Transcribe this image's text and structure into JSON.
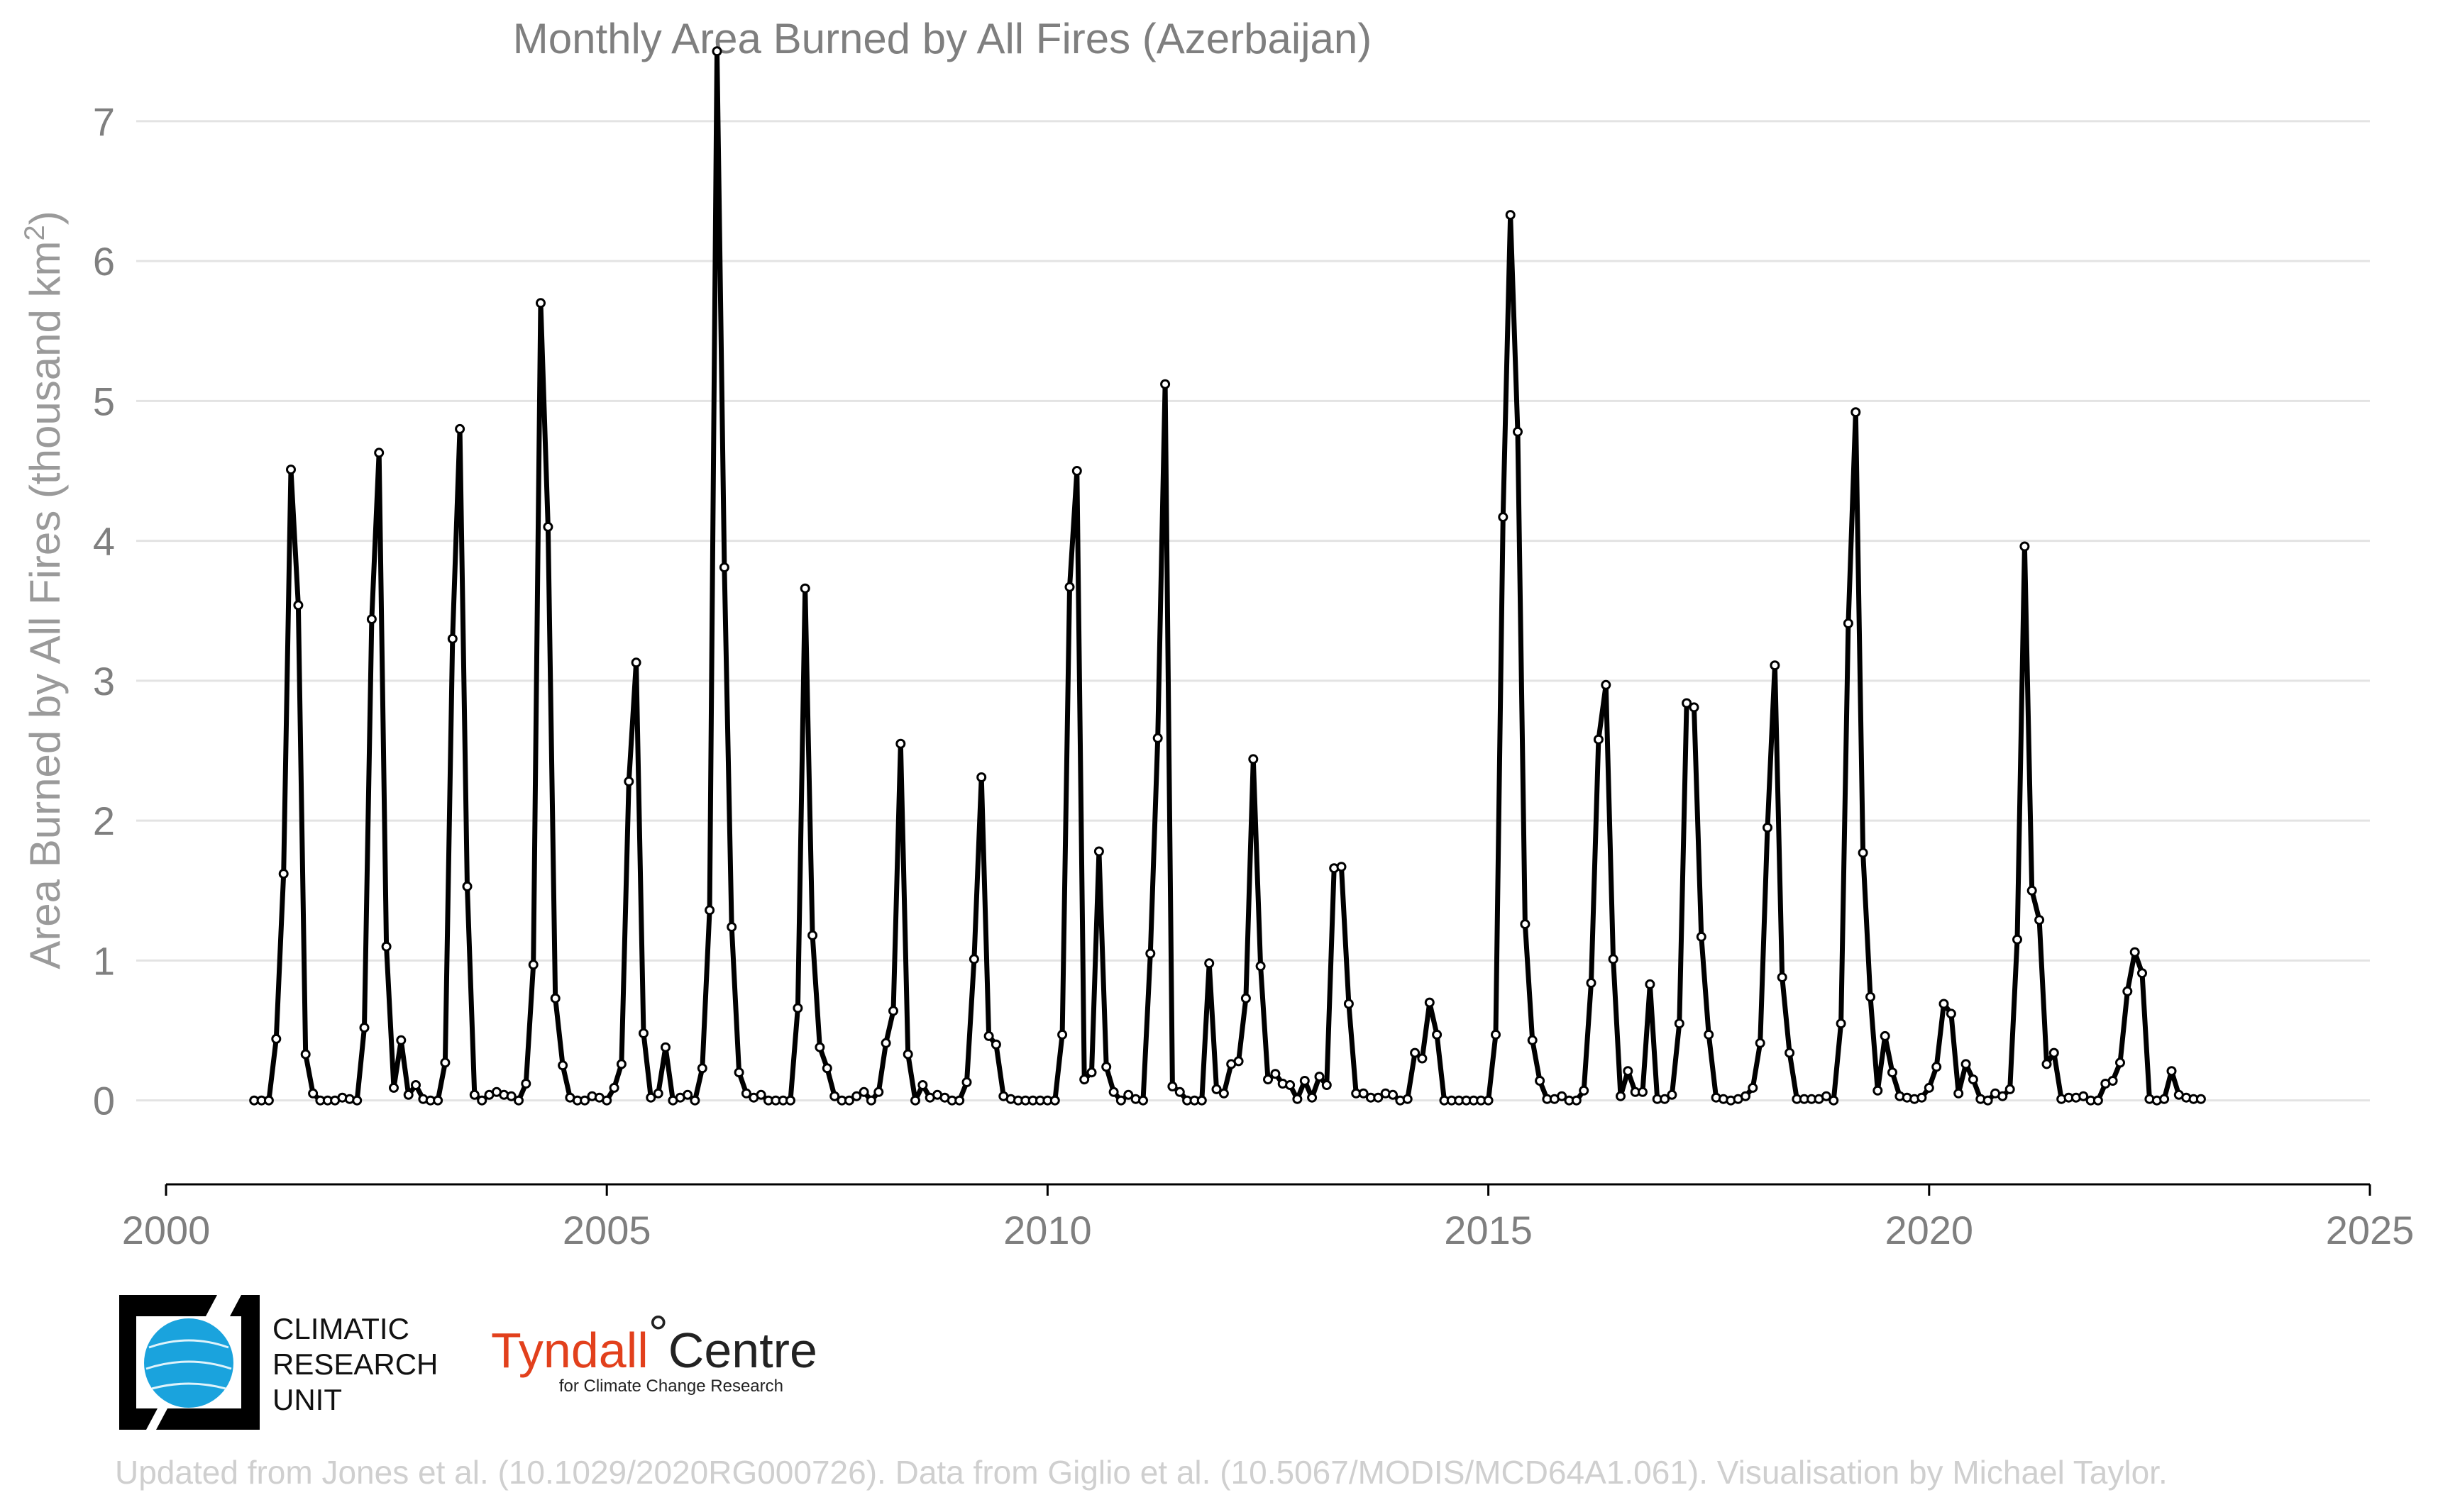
{
  "chart_data": {
    "type": "line",
    "title": "Monthly Area Burned by All Fires (Azerbaijan)",
    "ylabel": "Area Burned by All Fires (thousand km",
    "ylabel_superscript": "2",
    "ylabel_close": ")",
    "xlabel": "",
    "xlim": [
      2000,
      2025
    ],
    "ylim": [
      -0.6,
      7.4
    ],
    "x_ticks": [
      2000,
      2005,
      2010,
      2015,
      2020,
      2025
    ],
    "x_tick_labels": [
      "2000",
      "2005",
      "2010",
      "2015",
      "2020",
      "2025"
    ],
    "y_ticks": [
      0,
      1,
      2,
      3,
      4,
      5,
      6,
      7
    ],
    "y_tick_labels": [
      "0",
      "1",
      "2",
      "3",
      "4",
      "5",
      "6",
      "7"
    ],
    "grid": "horizontal",
    "line_color": "#000000",
    "marker": "open-circle",
    "start_date": "2001-01",
    "series": [
      {
        "values": [
          0,
          0,
          0,
          0.44,
          1.62,
          4.51,
          3.54,
          0.33,
          0.05,
          0,
          0,
          0,
          0.02,
          0.01,
          0,
          0.52,
          3.44,
          4.63,
          1.1,
          0.09,
          0.43,
          0.04,
          0.11,
          0.01,
          0,
          0,
          0.27,
          3.3,
          4.8,
          1.53,
          0.04,
          0,
          0.04,
          0.06,
          0.04,
          0.03,
          0,
          0.12,
          0.97,
          5.7,
          4.1,
          0.73,
          0.25,
          0.02,
          0,
          0,
          0.03,
          0.02,
          0,
          0.09,
          0.26,
          2.28,
          3.13,
          0.48,
          0.02,
          0.05,
          0.38,
          0,
          0.02,
          0.04,
          0,
          0.23,
          1.36,
          7.5,
          3.81,
          1.24,
          0.2,
          0.05,
          0.02,
          0.04,
          0,
          0,
          0,
          0,
          0.66,
          3.66,
          1.18,
          0.38,
          0.23,
          0.03,
          0,
          0,
          0.03,
          0.06,
          0,
          0.06,
          0.41,
          0.64,
          2.55,
          0.33,
          0,
          0.11,
          0.02,
          0.04,
          0.02,
          0,
          0,
          0.13,
          1.01,
          2.31,
          0.46,
          0.4,
          0.03,
          0.01,
          0,
          0,
          0,
          0,
          0,
          0,
          0.47,
          3.67,
          4.5,
          0.15,
          0.2,
          1.78,
          0.24,
          0.06,
          0,
          0.04,
          0.01,
          0,
          1.05,
          2.59,
          5.12,
          0.1,
          0.06,
          0,
          0,
          0,
          0.98,
          0.08,
          0.05,
          0.26,
          0.28,
          0.73,
          2.44,
          0.96,
          0.15,
          0.19,
          0.12,
          0.11,
          0.01,
          0.14,
          0.02,
          0.17,
          0.11,
          1.66,
          1.67,
          0.69,
          0.05,
          0.05,
          0.02,
          0.02,
          0.05,
          0.04,
          0,
          0.01,
          0.34,
          0.3,
          0.7,
          0.47,
          0,
          0,
          0,
          0,
          0,
          0,
          0,
          0.47,
          4.17,
          6.33,
          4.78,
          1.26,
          0.43,
          0.14,
          0.01,
          0.01,
          0.03,
          0,
          0,
          0.07,
          0.84,
          2.58,
          2.97,
          1.01,
          0.03,
          0.21,
          0.06,
          0.06,
          0.83,
          0.01,
          0.01,
          0.04,
          0.55,
          2.84,
          2.81,
          1.17,
          0.47,
          0.02,
          0.01,
          0,
          0.01,
          0.03,
          0.09,
          0.41,
          1.95,
          3.11,
          0.88,
          0.34,
          0.01,
          0.01,
          0.01,
          0.01,
          0.03,
          0,
          0.55,
          3.41,
          4.92,
          1.77,
          0.74,
          0.07,
          0.46,
          0.2,
          0.03,
          0.02,
          0.01,
          0.02,
          0.09,
          0.24,
          0.69,
          0.62,
          0.05,
          0.26,
          0.15,
          0.01,
          0,
          0.05,
          0.03,
          0.08,
          1.15,
          3.96,
          1.5,
          1.29,
          0.26,
          0.34,
          0.01,
          0.02,
          0.02,
          0.03,
          0,
          0,
          0.12,
          0.14,
          0.27,
          0.78,
          1.06,
          0.91,
          0.01,
          0,
          0.01,
          0.21,
          0.04,
          0.02,
          0.01,
          0.01
        ]
      }
    ]
  },
  "logos": {
    "cru": {
      "line1": "CLIMATIC",
      "line2": "RESEARCH",
      "line3": "UNIT",
      "accent": "#1aa3dd"
    },
    "tyndall": {
      "name": "Tyndall",
      "degree": "°",
      "centre": "Centre",
      "subtitle": "for Climate Change Research",
      "accent": "#e2401c"
    }
  },
  "credit": "Updated from Jones et al. (10.1029/2020RG000726). Data from Giglio et al. (10.5067/MODIS/MCD64A1.061). Visualisation by Michael Taylor."
}
